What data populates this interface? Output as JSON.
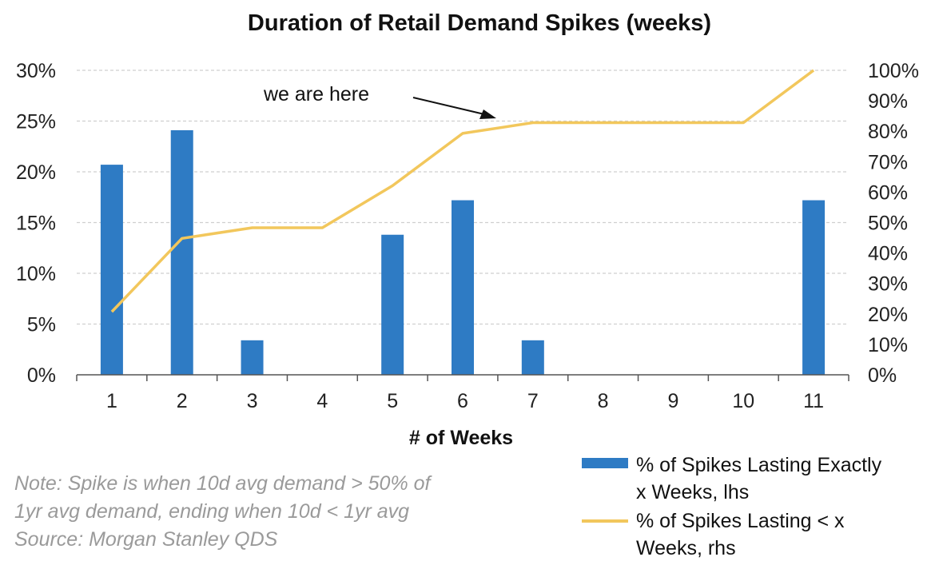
{
  "chart_data": {
    "type": "bar+line",
    "title": "Duration of Retail Demand Spikes (weeks)",
    "xlabel": "# of Weeks",
    "categories": [
      "1",
      "2",
      "3",
      "4",
      "5",
      "6",
      "7",
      "8",
      "9",
      "10",
      "11"
    ],
    "y_left": {
      "min": 0,
      "max": 30,
      "ticks": [
        "0%",
        "5%",
        "10%",
        "15%",
        "20%",
        "25%",
        "30%"
      ]
    },
    "y_right": {
      "min": 0,
      "max": 100,
      "ticks": [
        "0%",
        "10%",
        "20%",
        "30%",
        "40%",
        "50%",
        "60%",
        "70%",
        "80%",
        "90%",
        "100%"
      ]
    },
    "series": [
      {
        "name": "% of Spikes Lasting Exactly x Weeks, lhs",
        "type": "bar",
        "axis": "left",
        "color": "#2e7bc4",
        "values": [
          20.7,
          24.1,
          3.4,
          0,
          13.8,
          17.2,
          3.4,
          0,
          0,
          0,
          17.2
        ]
      },
      {
        "name": "% of Spikes Lasting < x Weeks, rhs",
        "type": "line",
        "axis": "right",
        "color": "#f2c75c",
        "values": [
          20.7,
          44.8,
          48.3,
          48.3,
          62.1,
          79.3,
          82.8,
          82.8,
          82.8,
          82.8,
          100
        ]
      }
    ],
    "annotation": {
      "text": "we are here",
      "target_category": "6"
    },
    "gridlines": true,
    "legend_position": "bottom-right"
  },
  "legend": {
    "bar_line1": "% of Spikes Lasting Exactly",
    "bar_line2": "x Weeks, lhs",
    "line_line1": "% of Spikes Lasting < x",
    "line_line2": "Weeks, rhs"
  },
  "note": {
    "line1": "Note: Spike is when 10d avg demand > 50% of",
    "line2": "1yr avg demand, ending when 10d < 1yr avg",
    "line3": "Source: Morgan Stanley QDS"
  }
}
